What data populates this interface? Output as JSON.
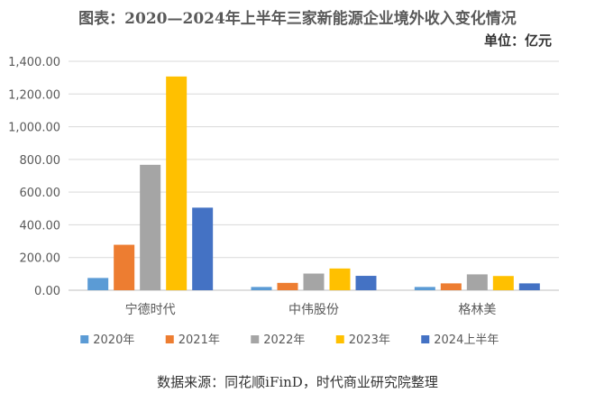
{
  "chart_data": {
    "type": "bar",
    "title": "图表：2020—2024年上半年三家新能源企业境外收入变化情况",
    "unit_label": "单位：亿元",
    "source": "数据来源：同花顺iFinD，时代商业研究院整理",
    "categories": [
      "宁德时代",
      "中伟股份",
      "格林美"
    ],
    "series": [
      {
        "name": "2020年",
        "color": "#5B9BD5",
        "values": [
          75,
          20,
          20
        ]
      },
      {
        "name": "2021年",
        "color": "#ED7D31",
        "values": [
          278,
          45,
          42
        ]
      },
      {
        "name": "2022年",
        "color": "#A5A5A5",
        "values": [
          767,
          102,
          97
        ]
      },
      {
        "name": "2023年",
        "color": "#FFC000",
        "values": [
          1307,
          133,
          87
        ]
      },
      {
        "name": "2024上半年",
        "color": "#4472C4",
        "values": [
          505,
          88,
          42
        ]
      }
    ],
    "ylim": [
      0,
      1400
    ],
    "yticks": [
      "0.00",
      "200.00",
      "400.00",
      "600.00",
      "800.00",
      "1,000.00",
      "1,200.00",
      "1,400.00"
    ],
    "grid": true,
    "legend_position": "bottom"
  }
}
